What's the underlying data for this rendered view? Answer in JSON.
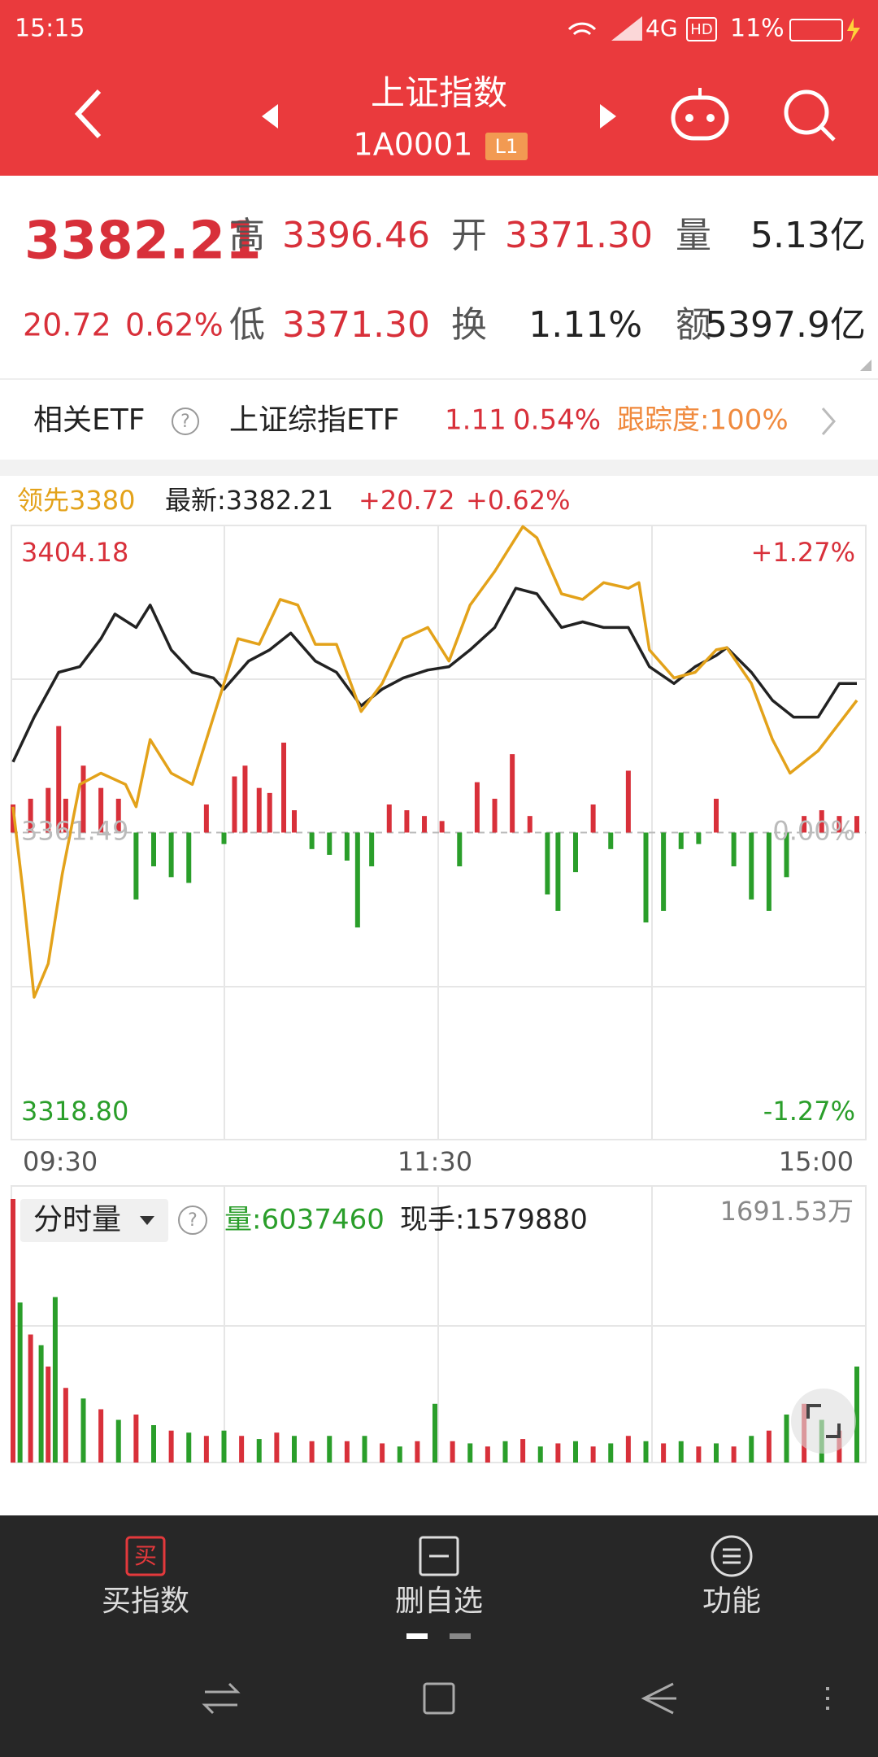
{
  "status_bar": {
    "time": "15:15",
    "network": "4G",
    "hd": "HD",
    "battery": "11%"
  },
  "header": {
    "title": "上证指数",
    "code": "1A0001",
    "badge": "L1"
  },
  "quote": {
    "price": "3382.21",
    "change": "20.72",
    "change_pct": "0.62%",
    "fields": [
      {
        "label": "高",
        "value": "3396.46"
      },
      {
        "label": "开",
        "value": "3371.30"
      },
      {
        "label": "量",
        "value": "5.13亿"
      },
      {
        "label": "低",
        "value": "3371.30"
      },
      {
        "label": "换",
        "value": "1.11%"
      },
      {
        "label": "额",
        "value": "5397.9亿"
      }
    ]
  },
  "etf": {
    "label": "相关ETF",
    "name": "上证综指ETF",
    "price": "1.11",
    "change_pct": "0.54%",
    "tracking": "跟踪度:100%"
  },
  "chart_data": [
    {
      "type": "line",
      "annotations": [
        "最新:3382.21",
        "+20.72",
        "+0.62%"
      ],
      "xlim": [
        0,
        240
      ],
      "xticks": [
        {
          "value": 0,
          "label": "09:30"
        },
        {
          "value": 120,
          "label": "11:30"
        },
        {
          "value": 240,
          "label": "15:00"
        }
      ],
      "ylim": [
        3318.8,
        3404.18
      ],
      "yticks": [
        {
          "value": 3318.8,
          "label": "3318.80"
        },
        {
          "value": 3361.49,
          "label": "3361.49"
        },
        {
          "value": 3404.18,
          "label": "3404.18"
        }
      ],
      "y2lim": [
        -1.27,
        1.27
      ],
      "y2ticks": [
        {
          "value": -1.27,
          "label": "-1.27%"
        },
        {
          "value": 0,
          "label": "0.00%"
        },
        {
          "value": 1.27,
          "label": "+1.27%"
        }
      ],
      "series": [
        {
          "color": "#222222",
          "x": [
            0,
            6,
            13,
            19,
            25,
            29,
            35,
            39,
            45,
            51,
            57,
            60,
            67,
            73,
            79,
            86,
            92,
            99,
            105,
            111,
            118,
            124,
            130,
            137,
            143,
            149,
            156,
            162,
            168,
            175,
            181,
            188,
            194,
            200,
            203,
            210,
            216,
            222,
            229,
            235,
            240
          ],
          "values": [
            3371.3,
            3377.54,
            3383.77,
            3384.55,
            3388.44,
            3391.87,
            3390.0,
            3393.12,
            3386.89,
            3383.77,
            3382.99,
            3381.43,
            3385.33,
            3386.89,
            3389.22,
            3385.33,
            3383.77,
            3379.1,
            3381.43,
            3382.99,
            3384.08,
            3384.55,
            3386.89,
            3390.0,
            3395.45,
            3394.68,
            3390.0,
            3390.78,
            3390.0,
            3390.0,
            3384.55,
            3382.21,
            3384.55,
            3386.11,
            3387.2,
            3383.77,
            3379.87,
            3377.54,
            3377.54,
            3382.21,
            3382.21
          ]
        },
        {
          "name": "领先3380",
          "color": "#e3a21a",
          "x": [
            0,
            3,
            6,
            10,
            14,
            19,
            25,
            32,
            35,
            39,
            45,
            51,
            57,
            64,
            70,
            76,
            81,
            86,
            92,
            99,
            105,
            111,
            118,
            124,
            130,
            137,
            145,
            149,
            156,
            162,
            168,
            175,
            178,
            181,
            188,
            194,
            200,
            203,
            210,
            216,
            221,
            229,
            240
          ],
          "values": [
            3365.07,
            3352.61,
            3338.59,
            3343.26,
            3355.73,
            3368.19,
            3369.75,
            3368.19,
            3365.07,
            3374.42,
            3369.75,
            3368.19,
            3377.54,
            3388.44,
            3387.66,
            3393.9,
            3393.12,
            3387.66,
            3387.66,
            3378.32,
            3382.21,
            3388.44,
            3390.0,
            3385.33,
            3393.12,
            3397.79,
            3404.02,
            3402.47,
            3394.68,
            3393.9,
            3396.23,
            3395.45,
            3396.23,
            3386.89,
            3382.99,
            3383.77,
            3386.89,
            3387.2,
            3382.21,
            3374.42,
            3369.75,
            3372.86,
            3379.87
          ]
        }
      ],
      "bars": {
        "up_color": "#d8303a",
        "down_color": "#2a9e2a",
        "x": [
          0,
          5,
          10,
          13,
          15,
          20,
          25,
          30,
          35,
          40,
          45,
          50,
          55,
          60,
          63,
          66,
          70,
          73,
          77,
          80,
          85,
          90,
          95,
          98,
          102,
          107,
          112,
          117,
          122,
          127,
          132,
          137,
          142,
          147,
          152,
          155,
          160,
          165,
          170,
          175,
          180,
          185,
          190,
          195,
          200,
          205,
          210,
          215,
          220,
          225,
          230,
          235,
          240
        ],
        "values": [
          3.9,
          4.7,
          6.2,
          14.8,
          4.7,
          9.3,
          6.2,
          4.7,
          -9.3,
          -4.7,
          -6.2,
          -7.0,
          3.9,
          -1.6,
          7.8,
          9.3,
          6.2,
          5.5,
          12.5,
          3.1,
          -2.3,
          -3.1,
          -3.9,
          -13.2,
          -4.7,
          3.9,
          3.1,
          2.3,
          1.6,
          -4.7,
          7.0,
          4.7,
          10.9,
          2.3,
          -8.6,
          -10.9,
          -5.5,
          3.9,
          -2.3,
          8.6,
          -12.5,
          -10.9,
          -2.3,
          -1.6,
          4.7,
          -4.7,
          -9.3,
          -10.9,
          -6.2,
          2.3,
          3.1,
          2.3,
          2.3
        ]
      }
    },
    {
      "type": "bar",
      "title": "分时量",
      "annotations": [
        "量:6037460",
        "现手:1579880"
      ],
      "xlim": [
        0,
        240
      ],
      "ylim": [
        0,
        1691.53
      ],
      "yticks": [
        {
          "value": 1691.53,
          "label": "1691.53万"
        }
      ],
      "colors": [
        "#d8303a",
        "#2a9e2a"
      ],
      "x": [
        0,
        2,
        5,
        8,
        10,
        12,
        15,
        20,
        25,
        30,
        35,
        40,
        45,
        50,
        55,
        60,
        65,
        70,
        75,
        80,
        85,
        90,
        95,
        100,
        105,
        110,
        115,
        120,
        125,
        130,
        135,
        140,
        145,
        150,
        155,
        160,
        165,
        170,
        175,
        180,
        185,
        190,
        195,
        200,
        205,
        210,
        215,
        220,
        225,
        230,
        235,
        240
      ],
      "values": [
        1691.53,
        1027,
        822,
        753,
        616,
        1062,
        479,
        411,
        342,
        274,
        308,
        240,
        205,
        192,
        171,
        205,
        171,
        151,
        192,
        171,
        137,
        171,
        137,
        171,
        123,
        103,
        137,
        377,
        137,
        123,
        103,
        137,
        151,
        103,
        123,
        137,
        103,
        123,
        171,
        137,
        123,
        137,
        103,
        123,
        103,
        171,
        205,
        308,
        377,
        274,
        205,
        616
      ]
    }
  ],
  "nav": [
    {
      "icon": "买",
      "label": "买指数"
    },
    {
      "label": "删自选"
    },
    {
      "label": "功能"
    }
  ]
}
